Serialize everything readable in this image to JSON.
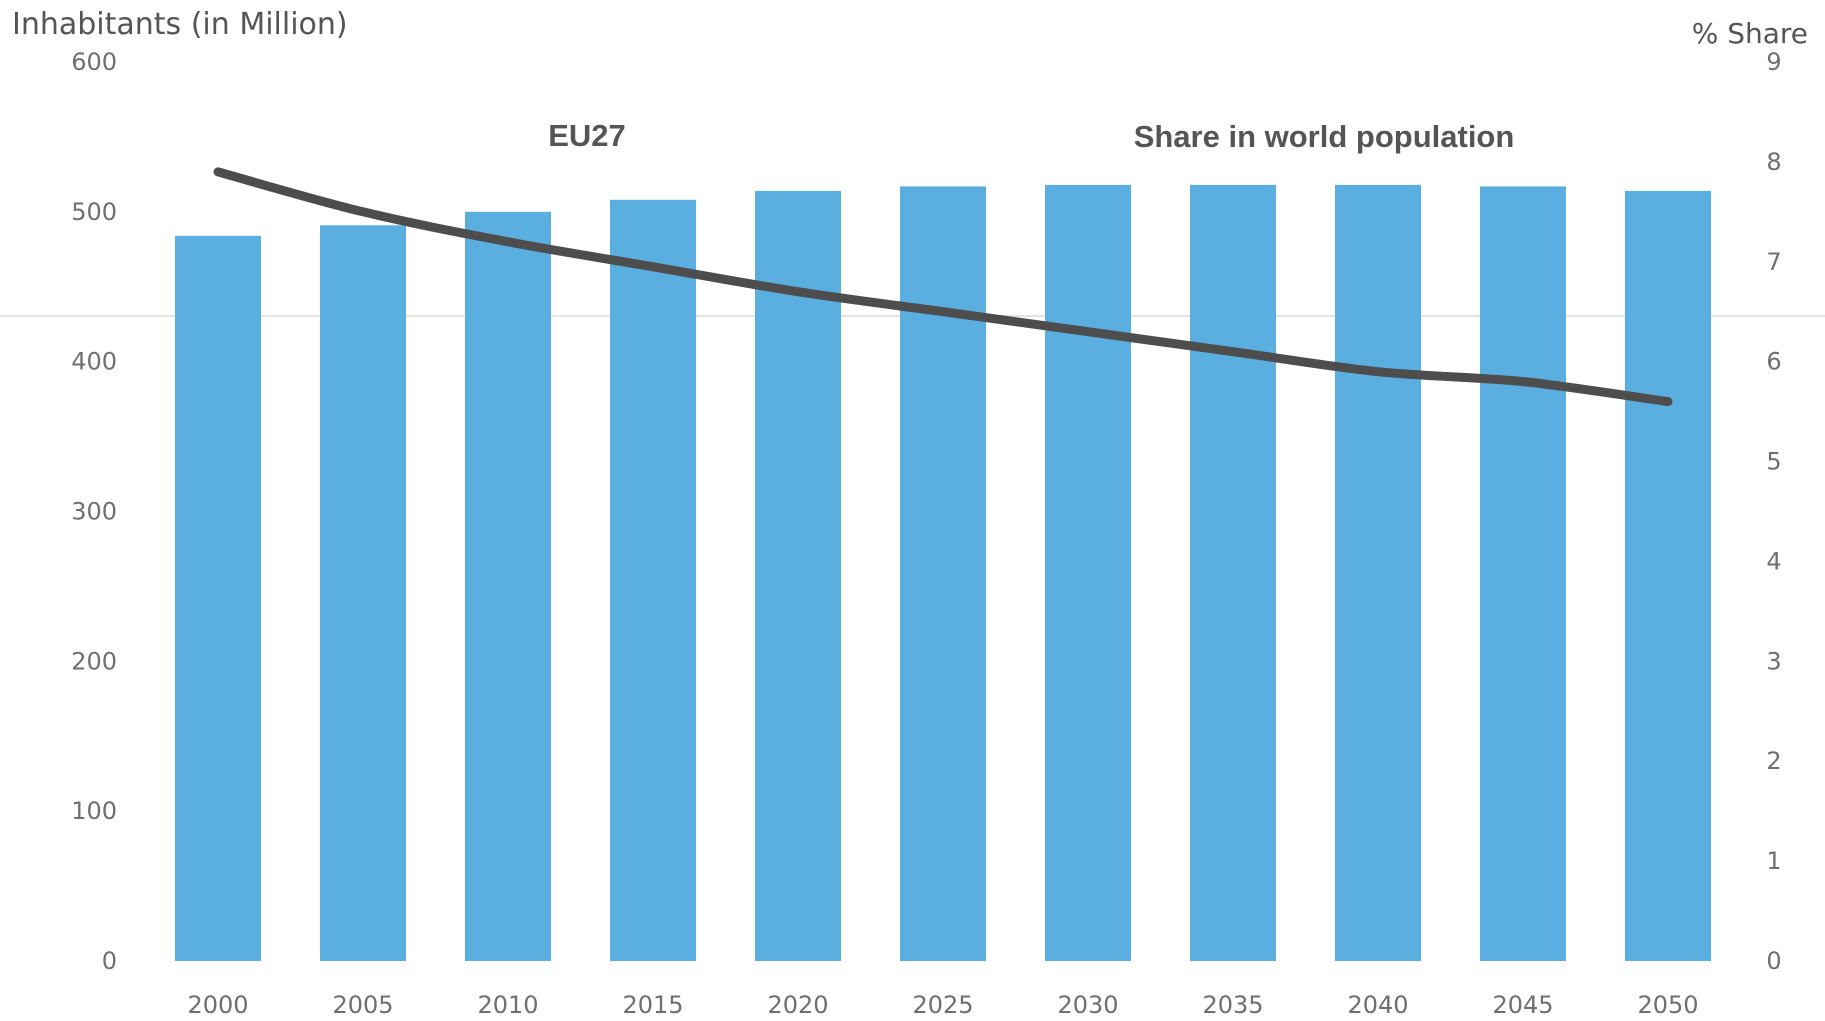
{
  "chart_data": {
    "type": "bar",
    "title": "",
    "xlabel": "",
    "ylabel": "Inhabitants (in Million)",
    "y2label": "% Share",
    "categories": [
      "2000",
      "2005",
      "2010",
      "2015",
      "2020",
      "2025",
      "2030",
      "2035",
      "2040",
      "2045",
      "2050"
    ],
    "ylim": [
      0,
      600
    ],
    "y2lim": [
      0,
      9
    ],
    "y_ticks": [
      "0",
      "100",
      "200",
      "300",
      "400",
      "500",
      "600"
    ],
    "y2_ticks": [
      "0",
      "1",
      "2",
      "3",
      "4",
      "5",
      "6",
      "7",
      "8",
      "9"
    ],
    "grid": false,
    "series": [
      {
        "name": "EU27",
        "type": "bar",
        "axis": "left",
        "color": "#5aaee0",
        "values": [
          484,
          491,
          500,
          508,
          514,
          517,
          518,
          518,
          518,
          517,
          514
        ]
      },
      {
        "name": "Share in world population",
        "type": "line",
        "axis": "right",
        "color": "#4d4d4d",
        "values": [
          7.9,
          7.5,
          7.2,
          6.95,
          6.7,
          6.5,
          6.3,
          6.1,
          5.9,
          5.8,
          5.6
        ]
      }
    ]
  }
}
